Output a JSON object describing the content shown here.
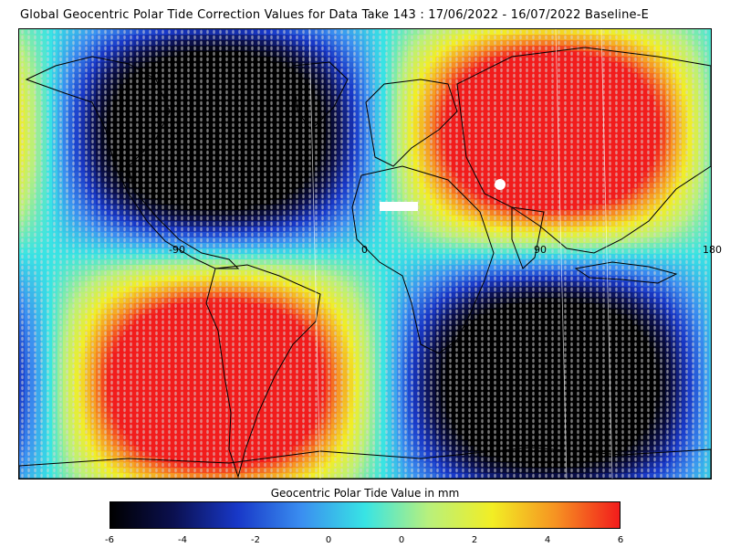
{
  "title": "Global Geocentric Polar Tide Correction Values for Data Take 143 : 17/06/2022 - 16/07/2022 Baseline-E",
  "map": {
    "longitude_labels": [
      "-90",
      "0",
      "90",
      "180"
    ],
    "projection": "equirectangular",
    "pattern": "tesseral degree-2 (sin 2φ · cos λ)",
    "overlay": "coastlines and satellite ground tracks"
  },
  "colorbar": {
    "title": "Geocentric Polar Tide Value in mm",
    "tick_labels": [
      "-6",
      "-4",
      "-2",
      "0",
      "0",
      "2",
      "4",
      "6"
    ],
    "range": [
      -6,
      6
    ],
    "colors": [
      "#000000",
      "#0b1050",
      "#1838c8",
      "#3a8ef0",
      "#38e4e4",
      "#b8f07c",
      "#f2ee24",
      "#f69222",
      "#f21c1c"
    ]
  },
  "chart_data": {
    "type": "heatmap",
    "title": "Global Geocentric Polar Tide Correction Values for Data Take 143 : 17/06/2022 - 16/07/2022 Baseline-E",
    "x_tick_labels": [
      "-90",
      "0",
      "90",
      "180"
    ],
    "colorbar_label": "Geocentric Polar Tide Value in mm",
    "value_range": [
      -6,
      6
    ],
    "grid": [
      [
        6,
        4,
        -6,
        -6,
        -6,
        -3,
        6,
        6
      ],
      [
        6,
        4,
        -6,
        -6,
        -6,
        -3,
        6,
        6
      ],
      [
        -6,
        -3,
        6,
        6,
        6,
        3,
        -6,
        -6
      ],
      [
        -6,
        -3,
        6,
        6,
        6,
        3,
        -6,
        -6
      ]
    ]
  }
}
